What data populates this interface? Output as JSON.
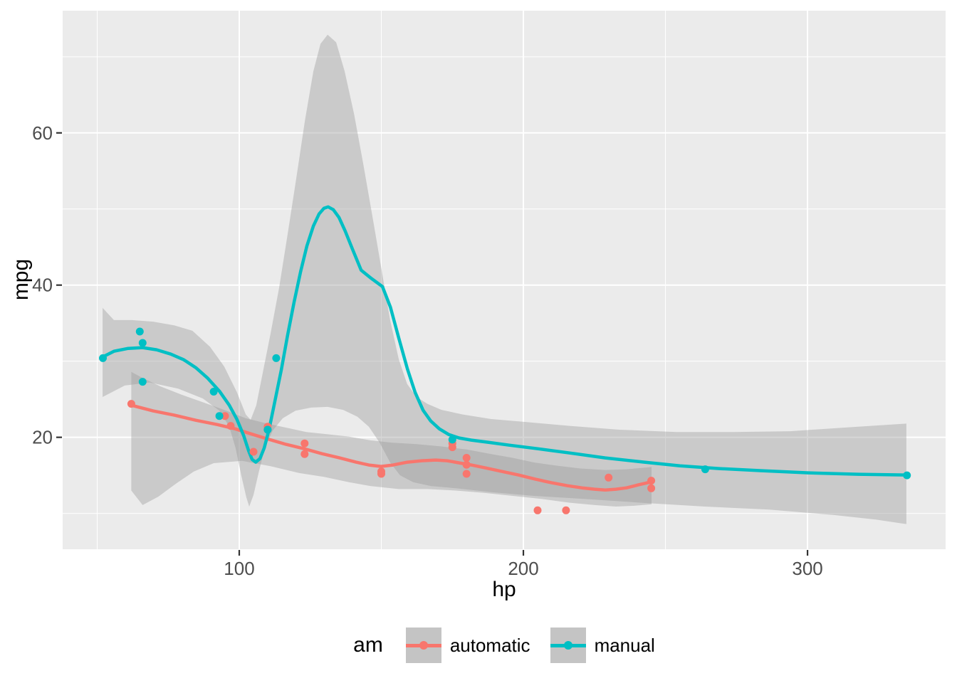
{
  "chart_data": {
    "type": "scatter",
    "title": "",
    "xlabel": "hp",
    "ylabel": "mpg",
    "x_domain": [
      37.85,
      348.6
    ],
    "y_domain": [
      5.29,
      76.06
    ],
    "x_ticks": [
      100,
      200,
      300
    ],
    "x_minor_ticks": [
      50,
      150,
      250,
      350
    ],
    "y_ticks": [
      20,
      40,
      60
    ],
    "y_minor_ticks": [
      10,
      30,
      50,
      70
    ],
    "grid": true,
    "panel_bg": "#EBEBEB",
    "grid_color": "#FFFFFF",
    "tick_color": "#333333",
    "tick_label_color": "#4D4D4D",
    "axis_title_color": "#000000",
    "ribbon_color": "#999999",
    "ribbon_opacity": 0.4,
    "legend": {
      "title": "am",
      "position": "bottom",
      "key_bg": "#C4C4C4",
      "entries": [
        {
          "label": "automatic",
          "color": "#F8766D"
        },
        {
          "label": "manual",
          "color": "#00BFC4"
        }
      ]
    },
    "series": [
      {
        "name": "automatic",
        "color": "#F8766D",
        "points": [
          [
            110,
            21.4
          ],
          [
            175,
            18.7
          ],
          [
            105,
            18.1
          ],
          [
            245,
            14.3
          ],
          [
            62,
            24.4
          ],
          [
            95,
            22.8
          ],
          [
            123,
            19.2
          ],
          [
            123,
            17.8
          ],
          [
            180,
            16.4
          ],
          [
            180,
            17.3
          ],
          [
            180,
            15.2
          ],
          [
            205,
            10.4
          ],
          [
            215,
            10.4
          ],
          [
            230,
            14.7
          ],
          [
            150,
            15.5
          ],
          [
            150,
            15.2
          ],
          [
            245,
            13.3
          ],
          [
            175,
            19.2
          ],
          [
            97,
            21.5
          ]
        ],
        "smooth": [
          [
            62.0,
            24.21
          ],
          [
            69.7,
            23.46
          ],
          [
            77.2,
            22.9
          ],
          [
            84.7,
            22.24
          ],
          [
            92.2,
            21.68
          ],
          [
            98.5,
            21.12
          ],
          [
            104.8,
            20.37
          ],
          [
            110.5,
            19.72
          ],
          [
            116.5,
            19.07
          ],
          [
            122.8,
            18.5
          ],
          [
            129.1,
            17.85
          ],
          [
            135.3,
            17.29
          ],
          [
            141.1,
            16.73
          ],
          [
            145.6,
            16.36
          ],
          [
            149.9,
            16.17
          ],
          [
            154.1,
            16.36
          ],
          [
            159.2,
            16.73
          ],
          [
            164.2,
            16.92
          ],
          [
            169.2,
            17.01
          ],
          [
            173.2,
            16.92
          ],
          [
            177.4,
            16.64
          ],
          [
            181.7,
            16.36
          ],
          [
            186.7,
            15.98
          ],
          [
            192.5,
            15.51
          ],
          [
            198.2,
            15.05
          ],
          [
            204.3,
            14.49
          ],
          [
            210.0,
            14.02
          ],
          [
            215.5,
            13.64
          ],
          [
            220.6,
            13.36
          ],
          [
            225.1,
            13.18
          ],
          [
            228.8,
            13.08
          ],
          [
            232.6,
            13.18
          ],
          [
            236.3,
            13.36
          ],
          [
            240.4,
            13.74
          ],
          [
            244.6,
            14.11
          ]
        ],
        "ribbon_upper": [
          [
            62.0,
            28.6
          ],
          [
            66.0,
            27.8
          ],
          [
            72.2,
            26.7
          ],
          [
            79.7,
            25.6
          ],
          [
            87.2,
            24.6
          ],
          [
            94.7,
            23.6
          ],
          [
            102.3,
            22.5
          ],
          [
            109.8,
            21.8
          ],
          [
            117.3,
            21.2
          ],
          [
            123.6,
            20.7
          ],
          [
            131.1,
            20.4
          ],
          [
            138.6,
            20.1
          ],
          [
            146.1,
            19.6
          ],
          [
            153.6,
            19.3
          ],
          [
            162.4,
            19.1
          ],
          [
            171.2,
            18.8
          ],
          [
            180.0,
            18.4
          ],
          [
            188.7,
            17.8
          ],
          [
            196.2,
            17.3
          ],
          [
            203.7,
            16.7
          ],
          [
            211.2,
            16.3
          ],
          [
            220.1,
            15.9
          ],
          [
            228.8,
            15.7
          ],
          [
            236.3,
            15.8
          ],
          [
            242.6,
            16.0
          ],
          [
            245.1,
            16.1
          ]
        ],
        "ribbon_lower": [
          [
            62.0,
            13.0
          ],
          [
            66.0,
            11.1
          ],
          [
            71.5,
            12.2
          ],
          [
            77.7,
            13.9
          ],
          [
            84.0,
            15.5
          ],
          [
            91.0,
            16.6
          ],
          [
            101.0,
            16.9
          ],
          [
            111.0,
            16.2
          ],
          [
            121.1,
            15.3
          ],
          [
            129.8,
            14.8
          ],
          [
            138.6,
            14.1
          ],
          [
            146.1,
            13.6
          ],
          [
            156.1,
            13.2
          ],
          [
            166.2,
            13.2
          ],
          [
            176.2,
            13.0
          ],
          [
            186.2,
            12.7
          ],
          [
            196.2,
            12.3
          ],
          [
            206.3,
            11.9
          ],
          [
            216.3,
            11.4
          ],
          [
            225.1,
            11.1
          ],
          [
            232.6,
            10.9
          ],
          [
            238.9,
            11.0
          ],
          [
            245.1,
            11.2
          ]
        ]
      },
      {
        "name": "manual",
        "color": "#00BFC4",
        "points": [
          [
            110,
            21.0
          ],
          [
            110,
            21.0
          ],
          [
            93,
            22.8
          ],
          [
            66,
            32.4
          ],
          [
            52,
            30.4
          ],
          [
            65,
            33.9
          ],
          [
            66,
            27.3
          ],
          [
            91,
            26.0
          ],
          [
            113,
            30.4
          ],
          [
            264,
            15.8
          ],
          [
            175,
            19.7
          ],
          [
            335,
            15.0
          ]
        ],
        "smooth": [
          [
            51.9,
            30.56
          ],
          [
            55.9,
            31.31
          ],
          [
            60.9,
            31.68
          ],
          [
            66.0,
            31.78
          ],
          [
            70.9,
            31.5
          ],
          [
            75.9,
            30.93
          ],
          [
            80.5,
            30.19
          ],
          [
            84.7,
            29.16
          ],
          [
            88.9,
            27.76
          ],
          [
            93.0,
            26.07
          ],
          [
            96.5,
            24.21
          ],
          [
            99.2,
            22.34
          ],
          [
            101.5,
            20.28
          ],
          [
            103.3,
            18.22
          ],
          [
            104.5,
            17.1
          ],
          [
            105.8,
            16.73
          ],
          [
            107.3,
            17.2
          ],
          [
            108.8,
            18.6
          ],
          [
            110.5,
            21.03
          ],
          [
            112.5,
            24.67
          ],
          [
            114.8,
            28.88
          ],
          [
            117.0,
            33.36
          ],
          [
            119.3,
            37.76
          ],
          [
            121.6,
            41.78
          ],
          [
            123.8,
            45.14
          ],
          [
            126.1,
            47.76
          ],
          [
            128.1,
            49.35
          ],
          [
            129.8,
            50.09
          ],
          [
            131.3,
            50.28
          ],
          [
            133.1,
            49.91
          ],
          [
            135.1,
            48.88
          ],
          [
            137.3,
            47.1
          ],
          [
            139.8,
            44.77
          ],
          [
            142.9,
            41.96
          ],
          [
            146.6,
            40.84
          ],
          [
            150.4,
            39.81
          ],
          [
            153.2,
            37.1
          ],
          [
            156.1,
            33.08
          ],
          [
            159.2,
            28.97
          ],
          [
            161.9,
            25.89
          ],
          [
            164.7,
            23.55
          ],
          [
            167.4,
            22.15
          ],
          [
            170.4,
            21.12
          ],
          [
            173.7,
            20.37
          ],
          [
            177.4,
            19.91
          ],
          [
            181.7,
            19.63
          ],
          [
            187.5,
            19.35
          ],
          [
            195.0,
            18.97
          ],
          [
            205.0,
            18.5
          ],
          [
            216.3,
            17.94
          ],
          [
            228.8,
            17.29
          ],
          [
            242.6,
            16.73
          ],
          [
            255.1,
            16.26
          ],
          [
            268.9,
            15.89
          ],
          [
            284.0,
            15.61
          ],
          [
            300.3,
            15.33
          ],
          [
            317.8,
            15.14
          ],
          [
            334.8,
            15.05
          ]
        ],
        "ribbon_upper": [
          [
            51.9,
            37.0
          ],
          [
            55.9,
            35.4
          ],
          [
            62.2,
            35.4
          ],
          [
            69.7,
            35.2
          ],
          [
            77.2,
            34.7
          ],
          [
            83.5,
            34.0
          ],
          [
            89.7,
            31.9
          ],
          [
            94.7,
            29.3
          ],
          [
            99.2,
            25.9
          ],
          [
            102.3,
            23.0
          ],
          [
            104.0,
            22.3
          ],
          [
            106.0,
            24.2
          ],
          [
            108.5,
            28.9
          ],
          [
            111.0,
            33.6
          ],
          [
            114.0,
            39.6
          ],
          [
            117.0,
            46.6
          ],
          [
            120.1,
            54.1
          ],
          [
            123.1,
            61.6
          ],
          [
            126.1,
            68.1
          ],
          [
            128.6,
            71.7
          ],
          [
            131.1,
            72.9
          ],
          [
            134.1,
            71.9
          ],
          [
            137.1,
            68.1
          ],
          [
            140.4,
            62.5
          ],
          [
            143.6,
            56.0
          ],
          [
            146.9,
            49.0
          ],
          [
            150.1,
            42.0
          ],
          [
            153.1,
            35.4
          ],
          [
            156.1,
            30.3
          ],
          [
            159.1,
            27.0
          ],
          [
            162.4,
            25.3
          ],
          [
            166.2,
            24.4
          ],
          [
            171.2,
            23.6
          ],
          [
            178.7,
            23.0
          ],
          [
            188.7,
            22.4
          ],
          [
            201.2,
            22.0
          ],
          [
            216.3,
            21.5
          ],
          [
            233.8,
            21.0
          ],
          [
            253.9,
            20.7
          ],
          [
            273.9,
            20.7
          ],
          [
            294.0,
            20.8
          ],
          [
            314.0,
            21.3
          ],
          [
            334.8,
            21.8
          ]
        ],
        "ribbon_lower": [
          [
            51.9,
            25.3
          ],
          [
            59.7,
            26.8
          ],
          [
            68.5,
            27.2
          ],
          [
            78.5,
            26.4
          ],
          [
            87.2,
            25.1
          ],
          [
            93.0,
            23.5
          ],
          [
            96.5,
            21.4
          ],
          [
            98.7,
            18.6
          ],
          [
            100.7,
            15.0
          ],
          [
            102.5,
            12.1
          ],
          [
            103.5,
            10.9
          ],
          [
            105.0,
            12.4
          ],
          [
            106.8,
            15.3
          ],
          [
            109.0,
            18.6
          ],
          [
            111.8,
            20.9
          ],
          [
            115.3,
            22.5
          ],
          [
            119.8,
            23.5
          ],
          [
            125.3,
            23.9
          ],
          [
            131.1,
            24.0
          ],
          [
            136.6,
            23.6
          ],
          [
            141.6,
            22.7
          ],
          [
            145.6,
            21.4
          ],
          [
            149.4,
            19.3
          ],
          [
            153.1,
            16.7
          ],
          [
            156.6,
            15.0
          ],
          [
            161.2,
            14.1
          ],
          [
            167.4,
            13.6
          ],
          [
            176.2,
            13.3
          ],
          [
            188.7,
            12.8
          ],
          [
            203.7,
            12.3
          ],
          [
            221.3,
            11.9
          ],
          [
            241.4,
            11.4
          ],
          [
            263.9,
            10.9
          ],
          [
            286.5,
            10.5
          ],
          [
            309.0,
            9.8
          ],
          [
            324.0,
            9.2
          ],
          [
            334.8,
            8.6
          ]
        ]
      }
    ]
  }
}
